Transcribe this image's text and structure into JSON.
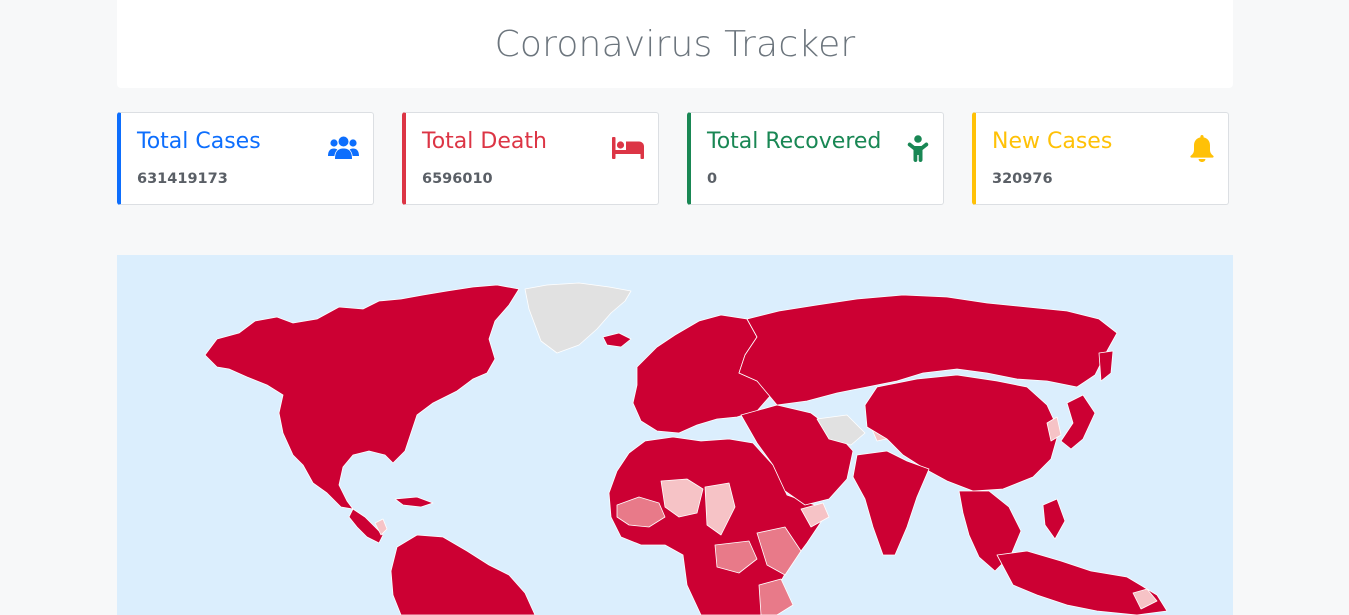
{
  "header": {
    "title": "Coronavirus Tracker"
  },
  "cards": {
    "total_cases": {
      "label": "Total Cases",
      "value": "631419173",
      "icon": "users-icon",
      "color": "#0d6efd"
    },
    "total_death": {
      "label": "Total Death",
      "value": "6596010",
      "icon": "bed-icon",
      "color": "#dc3545"
    },
    "total_recovered": {
      "label": "Total Recovered",
      "value": "0",
      "icon": "child-icon",
      "color": "#198754"
    },
    "new_cases": {
      "label": "New Cases",
      "value": "320976",
      "icon": "bell-icon",
      "color": "#ffc107"
    }
  },
  "map": {
    "ocean_color": "#dbeefd",
    "high_color": "#cc0033",
    "mid_color": "#e87a89",
    "low_color": "#f6c3c6",
    "no_data_color": "#e1e1e1"
  }
}
